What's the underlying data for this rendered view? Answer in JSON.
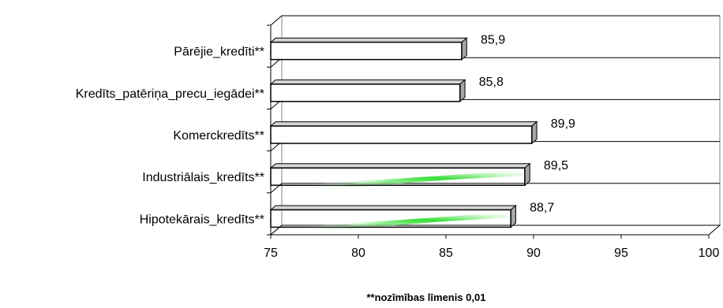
{
  "chart_data": {
    "type": "bar",
    "orientation": "horizontal",
    "three_d": true,
    "categories": [
      "Hipotekārais_kredīts**",
      "Industriālais_kredīts**",
      "Komerckredīts**",
      "Kredīts_patēriņa_precu_iegādei**",
      "Pārējie_kredīti**"
    ],
    "values": [
      88.7,
      89.5,
      89.9,
      85.8,
      85.9
    ],
    "value_labels": [
      "88,7",
      "89,5",
      "89,9",
      "85,8",
      "85,9"
    ],
    "xlim": [
      75,
      100
    ],
    "xticks": [
      75,
      80,
      85,
      90,
      95,
      100
    ],
    "tick_labels": [
      "75",
      "80",
      "85",
      "90",
      "95",
      "100"
    ],
    "highlighted": [
      true,
      true,
      false,
      false,
      false
    ],
    "grid": "horizontal",
    "legend": "none",
    "footnote": "**nozīmības līmenis 0,01",
    "colors": {
      "bar_face": "#ffffff",
      "bar_side": "#a6a6a6",
      "bar_top": "#d4d4d4",
      "outline": "#000000",
      "highlight": "#33dd33",
      "wall": "#ffffff",
      "grid": "#000000"
    }
  }
}
